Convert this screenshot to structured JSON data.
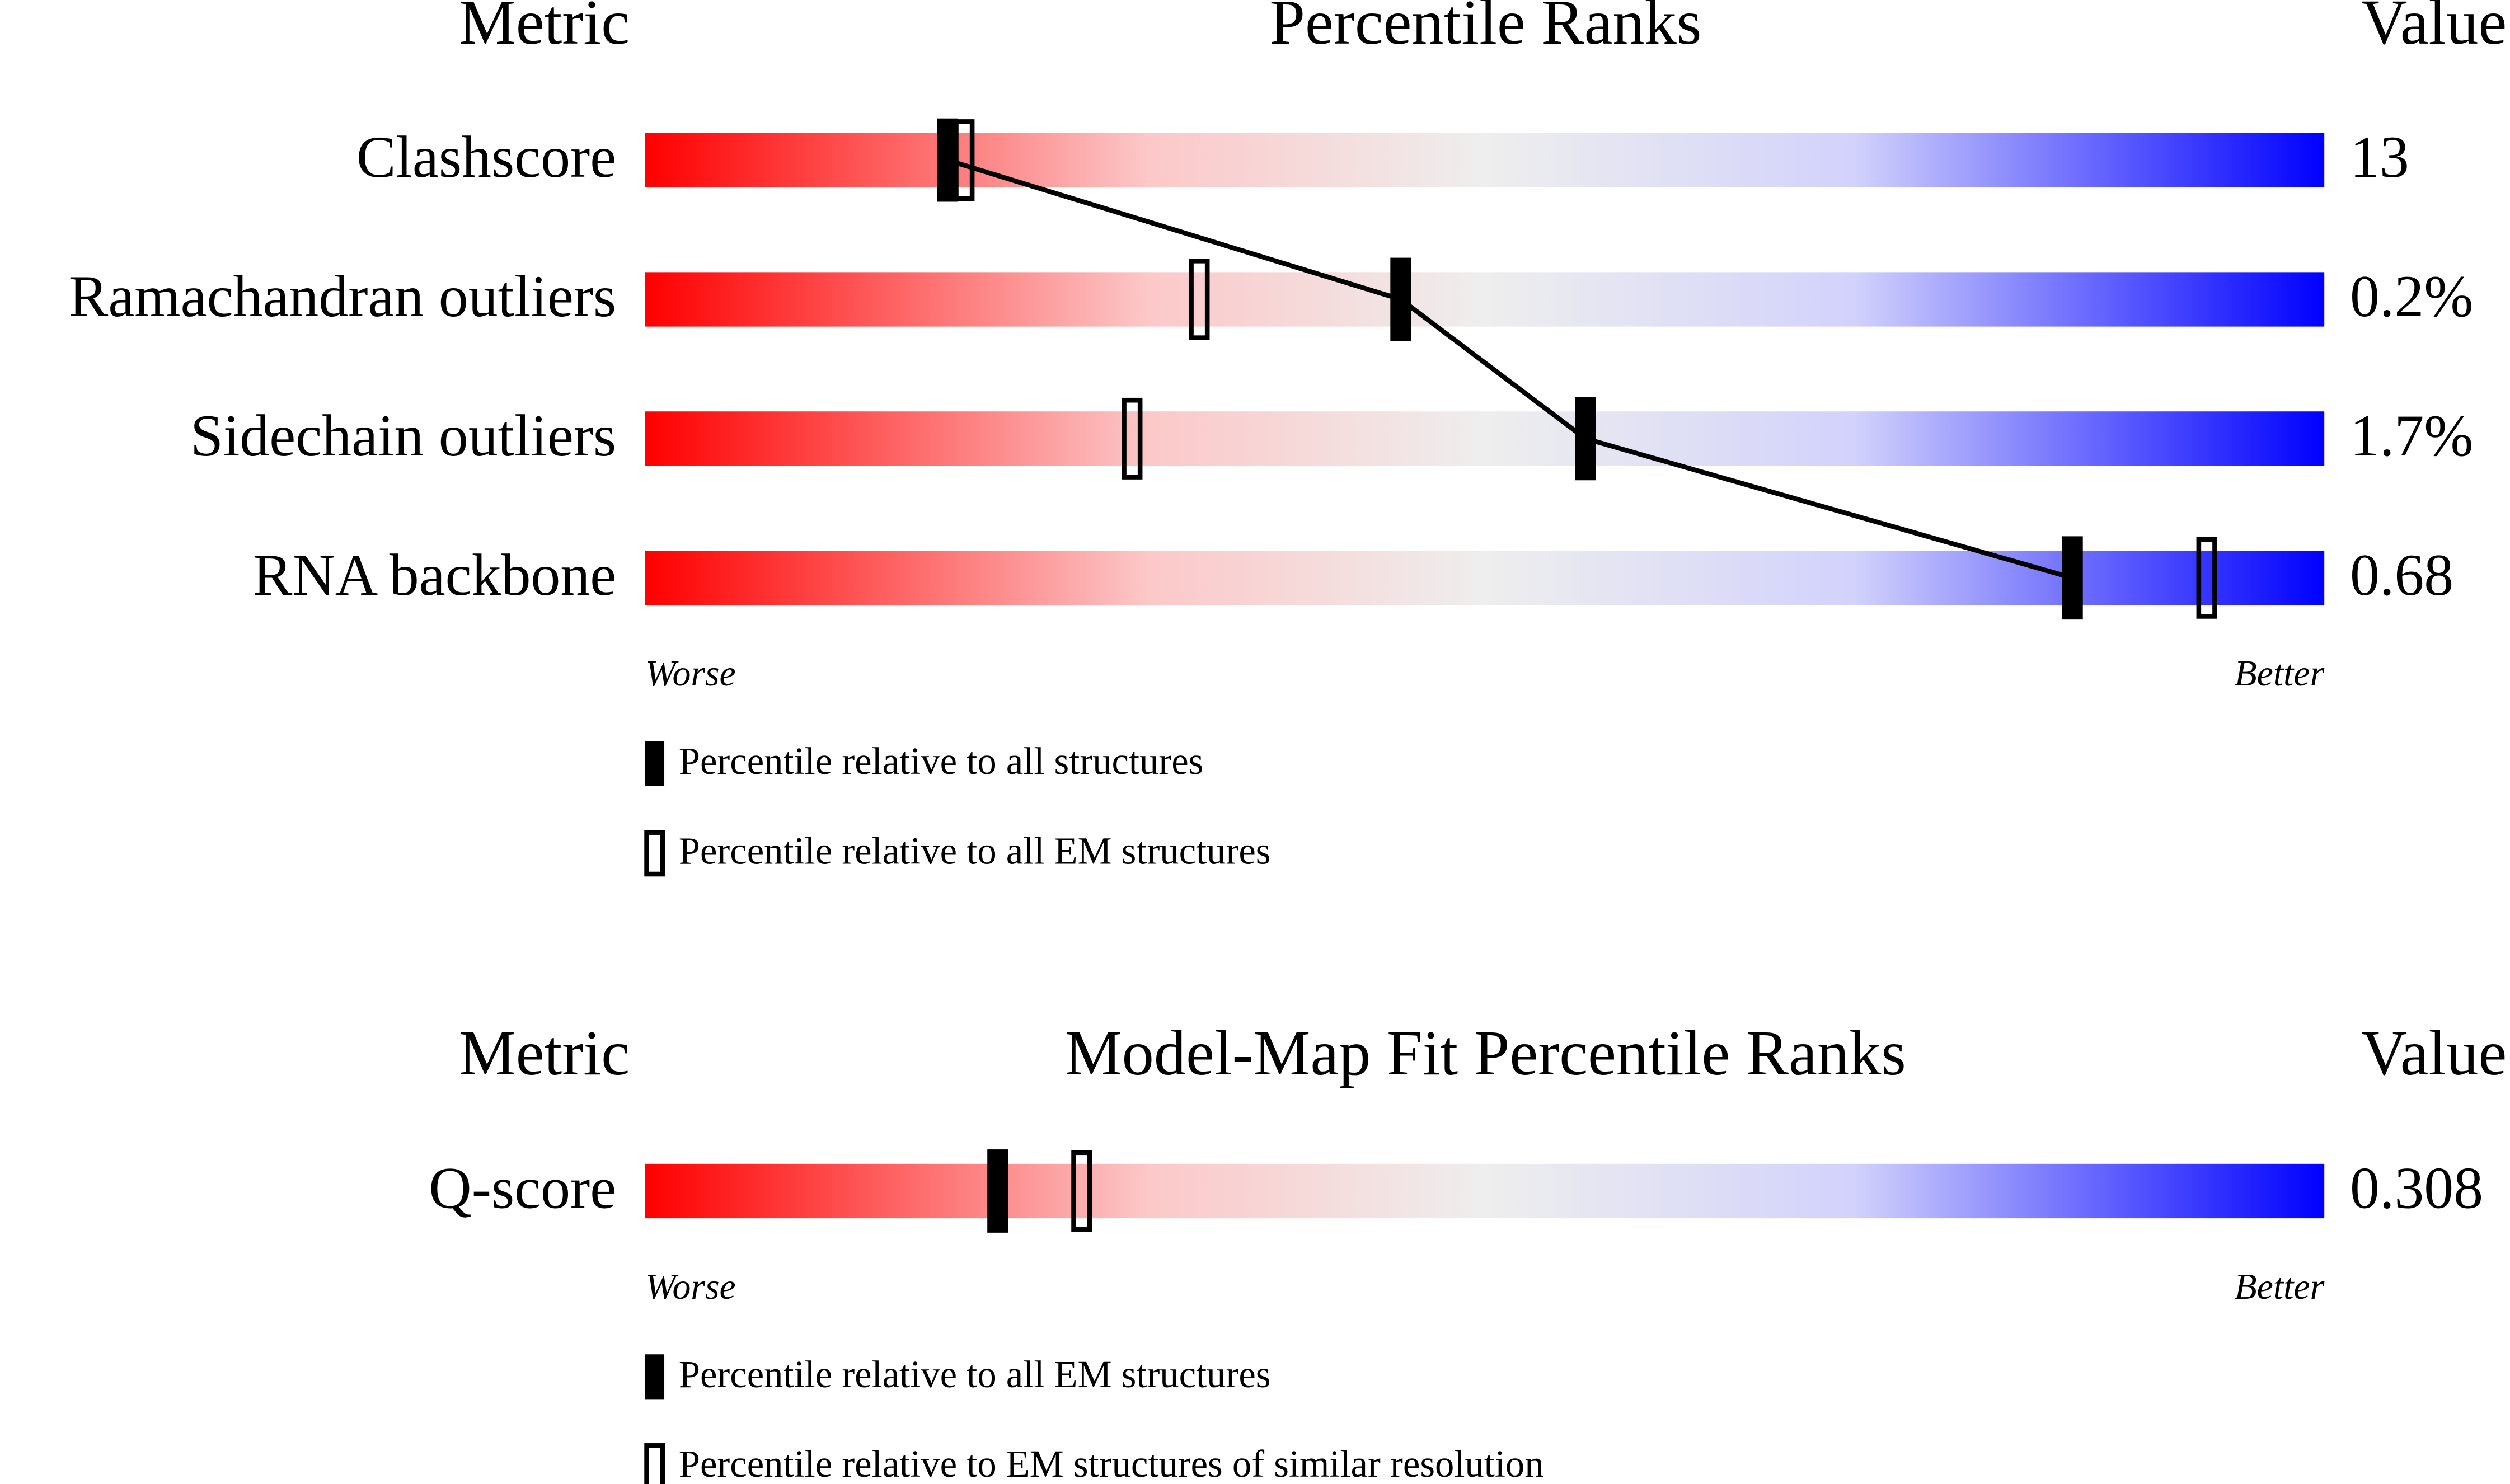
{
  "chart_data": [
    {
      "type": "slider",
      "metric_header": "Metric",
      "title": "Percentile Ranks",
      "value_header": "Value",
      "categories": [
        "Clashscore",
        "Ramachandran outliers",
        "Sidechain outliers",
        "RNA backbone"
      ],
      "metric_values": [
        "13",
        "0.2%",
        "1.7%",
        "0.68"
      ],
      "xlim": [
        0,
        100
      ],
      "worse_label": "Worse",
      "better_label": "Better",
      "series": [
        {
          "name": "Percentile relative to all structures",
          "marker": "filled",
          "color": "#000000",
          "connect": true,
          "values": [
            18,
            45,
            56,
            85
          ]
        },
        {
          "name": "Percentile relative to all EM structures",
          "marker": "open",
          "color": "#000000",
          "connect": false,
          "values": [
            19,
            33,
            29,
            93
          ]
        }
      ]
    },
    {
      "type": "slider",
      "metric_header": "Metric",
      "title": "Model-Map Fit Percentile Ranks",
      "value_header": "Value",
      "categories": [
        "Q-score"
      ],
      "metric_values": [
        "0.308"
      ],
      "xlim": [
        0,
        100
      ],
      "worse_label": "Worse",
      "better_label": "Better",
      "series": [
        {
          "name": "Percentile relative to all EM structures",
          "marker": "filled",
          "color": "#000000",
          "connect": true,
          "values": [
            21
          ]
        },
        {
          "name": "Percentile relative to EM structures of similar resolution",
          "marker": "open",
          "color": "#000000",
          "connect": false,
          "values": [
            26
          ]
        }
      ]
    }
  ]
}
